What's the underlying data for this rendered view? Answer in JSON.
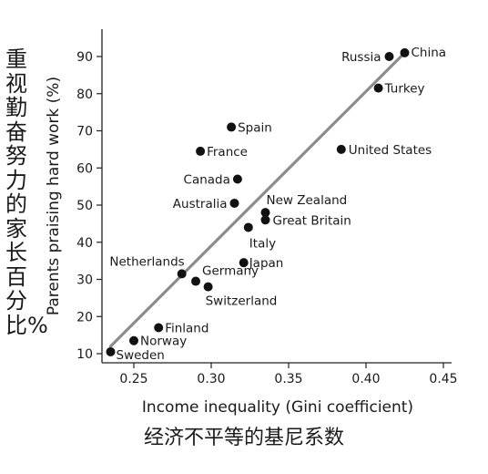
{
  "chart_data": {
    "type": "scatter",
    "xlabel": "Income inequality (Gini coefficient)",
    "ylabel": "Parents praising hard work (%)",
    "xlabel_cn": "经济不平等的基尼系数",
    "ylabel_cn": "重视勤奋努力的家长百分比%",
    "xlim": [
      0.23,
      0.45
    ],
    "ylim": [
      8,
      95
    ],
    "xticks": [
      "0.25",
      "0.30",
      "0.35",
      "0.40",
      "0.45"
    ],
    "yticks": [
      "10",
      "20",
      "30",
      "40",
      "50",
      "60",
      "70",
      "80",
      "90"
    ],
    "grid": false,
    "trendline": {
      "x": [
        0.235,
        0.425
      ],
      "y": [
        12,
        91
      ]
    },
    "points": [
      {
        "label": "China",
        "x": 0.425,
        "y": 91
      },
      {
        "label": "Russia",
        "x": 0.415,
        "y": 90
      },
      {
        "label": "Turkey",
        "x": 0.408,
        "y": 81.5
      },
      {
        "label": "United States",
        "x": 0.384,
        "y": 65
      },
      {
        "label": "Spain",
        "x": 0.313,
        "y": 71
      },
      {
        "label": "France",
        "x": 0.293,
        "y": 64.5
      },
      {
        "label": "Canada",
        "x": 0.317,
        "y": 57
      },
      {
        "label": "Australia",
        "x": 0.315,
        "y": 50.5
      },
      {
        "label": "New Zealand",
        "x": 0.335,
        "y": 48
      },
      {
        "label": "Great Britain",
        "x": 0.335,
        "y": 46
      },
      {
        "label": "Italy",
        "x": 0.324,
        "y": 44
      },
      {
        "label": "Japan",
        "x": 0.321,
        "y": 34.5
      },
      {
        "label": "Netherlands",
        "x": 0.281,
        "y": 31.5
      },
      {
        "label": "Germany",
        "x": 0.29,
        "y": 29.5
      },
      {
        "label": "Switzerland",
        "x": 0.298,
        "y": 28
      },
      {
        "label": "Finland",
        "x": 0.266,
        "y": 17
      },
      {
        "label": "Norway",
        "x": 0.25,
        "y": 13.5
      },
      {
        "label": "Sweden",
        "x": 0.235,
        "y": 10.5
      }
    ],
    "colors": {
      "points": "#111111",
      "trendline": "#8c8c8c",
      "axis": "#222222",
      "text": "#1a1a1a"
    }
  }
}
